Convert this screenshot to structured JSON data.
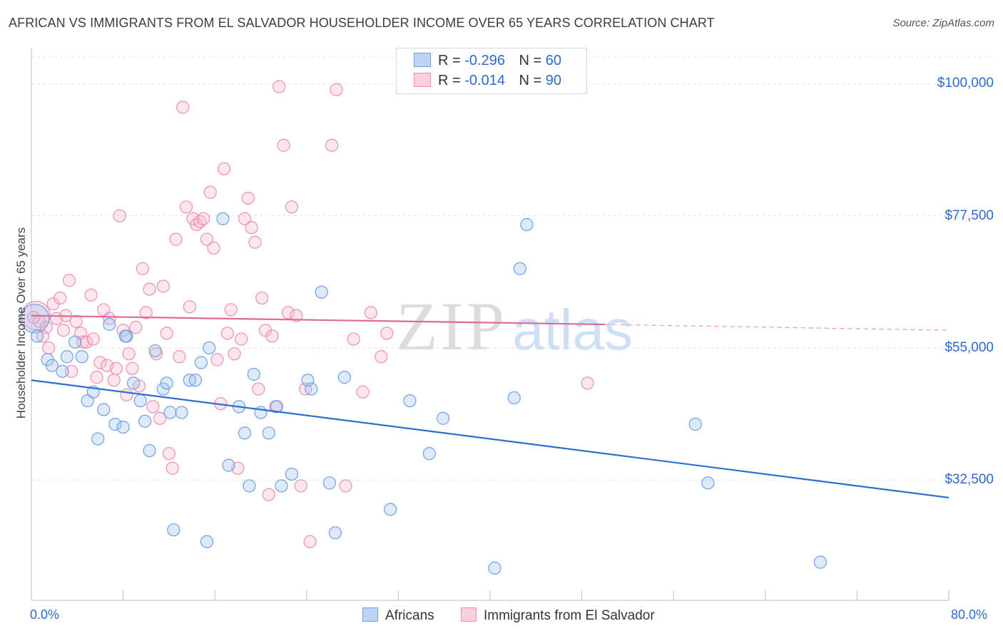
{
  "title": "AFRICAN VS IMMIGRANTS FROM EL SALVADOR HOUSEHOLDER INCOME OVER 65 YEARS CORRELATION CHART",
  "source": "Source: ZipAtlas.com",
  "watermark": {
    "zip": "ZIP",
    "atlas": "atlas"
  },
  "legend": {
    "rows": [
      {
        "r_label": "R =",
        "r_value": "-0.296",
        "n_label": "N =",
        "n_value": "60",
        "color": "#a9c8f2"
      },
      {
        "r_label": "R =",
        "r_value": "-0.014",
        "n_label": "N =",
        "n_value": "90",
        "color": "#f5b9cb"
      }
    ]
  },
  "bottom_legend": {
    "africans": "Africans",
    "salvador": "Immigrants from El Salvador"
  },
  "colors": {
    "blue": "#6fa0e8",
    "blue_fill": "rgba(160,195,240,0.35)",
    "blue_line": "#2d6fd0",
    "pink": "#ef8fad",
    "pink_fill": "rgba(245,185,205,0.35)",
    "pink_line": "#e06a93",
    "tick_text": "#2d6ad0"
  },
  "chart_data": {
    "type": "scatter",
    "ylabel": "Householder Income Over 65 years",
    "xlim": [
      0,
      80
    ],
    "ylim": [
      12000,
      106000
    ],
    "x_ticks": [
      {
        "value": 0,
        "label": "0.0%"
      },
      {
        "value": 80,
        "label": "80.0%"
      }
    ],
    "y_ticks": [
      {
        "value": 32500,
        "label": "$32,500"
      },
      {
        "value": 55000,
        "label": "$55,000"
      },
      {
        "value": 77500,
        "label": "$77,500"
      },
      {
        "value": 100000,
        "label": "$100,000"
      }
    ],
    "grid": "horizontal dashed",
    "series": [
      {
        "name": "Africans",
        "trend": {
          "x": [
            0,
            80
          ],
          "y": [
            49500,
            29500
          ]
        },
        "points": [
          [
            0.3,
            60000
          ],
          [
            0.5,
            57000
          ],
          [
            1.4,
            53000
          ],
          [
            1.8,
            52000
          ],
          [
            2.7,
            51000
          ],
          [
            3.1,
            53500
          ],
          [
            3.8,
            56000
          ],
          [
            4.4,
            53500
          ],
          [
            4.9,
            46000
          ],
          [
            5.4,
            47500
          ],
          [
            6.3,
            44500
          ],
          [
            5.8,
            39500
          ],
          [
            6.8,
            59000
          ],
          [
            7.3,
            42000
          ],
          [
            8.0,
            41500
          ],
          [
            8.3,
            57000
          ],
          [
            8.9,
            49000
          ],
          [
            9.5,
            46000
          ],
          [
            9.9,
            42500
          ],
          [
            10.3,
            37500
          ],
          [
            10.8,
            54500
          ],
          [
            11.5,
            48000
          ],
          [
            11.8,
            49000
          ],
          [
            12.4,
            24000
          ],
          [
            12.1,
            44000
          ],
          [
            13.1,
            44000
          ],
          [
            13.8,
            49500
          ],
          [
            14.3,
            49500
          ],
          [
            14.8,
            52500
          ],
          [
            15.3,
            22000
          ],
          [
            15.5,
            55000
          ],
          [
            16.7,
            77000
          ],
          [
            17.2,
            35000
          ],
          [
            18.1,
            45000
          ],
          [
            18.6,
            40500
          ],
          [
            19.0,
            31500
          ],
          [
            19.4,
            50500
          ],
          [
            20.0,
            44000
          ],
          [
            20.7,
            40500
          ],
          [
            21.4,
            45000
          ],
          [
            21.8,
            31500
          ],
          [
            22.7,
            33500
          ],
          [
            24.1,
            49500
          ],
          [
            24.4,
            48000
          ],
          [
            25.3,
            64500
          ],
          [
            26.0,
            32000
          ],
          [
            26.5,
            23500
          ],
          [
            27.3,
            50000
          ],
          [
            31.3,
            27500
          ],
          [
            33.0,
            46000
          ],
          [
            34.7,
            37000
          ],
          [
            35.9,
            43000
          ],
          [
            40.4,
            17500
          ],
          [
            42.1,
            46500
          ],
          [
            42.6,
            68500
          ],
          [
            43.2,
            76000
          ],
          [
            57.9,
            42000
          ],
          [
            59.0,
            32000
          ],
          [
            68.8,
            18500
          ],
          [
            8.2,
            57000
          ]
        ]
      },
      {
        "name": "Immigrants from El Salvador",
        "trend": {
          "x": [
            0,
            50
          ],
          "y": [
            60500,
            59000
          ]
        },
        "trend_dashed": {
          "x": [
            50,
            80
          ],
          "y": [
            59000,
            58000
          ]
        },
        "points": [
          [
            0.4,
            60500
          ],
          [
            0.7,
            59500
          ],
          [
            1.0,
            57000
          ],
          [
            1.3,
            58500
          ],
          [
            1.5,
            55000
          ],
          [
            1.9,
            62500
          ],
          [
            2.2,
            60000
          ],
          [
            2.5,
            63500
          ],
          [
            2.8,
            58000
          ],
          [
            3.0,
            60500
          ],
          [
            3.3,
            66500
          ],
          [
            3.5,
            51000
          ],
          [
            3.9,
            59500
          ],
          [
            4.3,
            57500
          ],
          [
            4.5,
            56000
          ],
          [
            4.8,
            56000
          ],
          [
            5.2,
            64000
          ],
          [
            5.4,
            56500
          ],
          [
            5.7,
            50000
          ],
          [
            6.0,
            52500
          ],
          [
            6.3,
            61500
          ],
          [
            6.6,
            52000
          ],
          [
            6.8,
            60000
          ],
          [
            7.2,
            49500
          ],
          [
            7.4,
            51500
          ],
          [
            7.7,
            77500
          ],
          [
            8.0,
            58000
          ],
          [
            8.3,
            47000
          ],
          [
            8.5,
            54000
          ],
          [
            8.8,
            51500
          ],
          [
            9.1,
            58500
          ],
          [
            9.4,
            48500
          ],
          [
            9.7,
            68500
          ],
          [
            10.0,
            61000
          ],
          [
            10.3,
            65000
          ],
          [
            10.6,
            45000
          ],
          [
            10.9,
            54000
          ],
          [
            11.2,
            43000
          ],
          [
            11.5,
            65500
          ],
          [
            11.8,
            57500
          ],
          [
            12.0,
            37000
          ],
          [
            12.3,
            34500
          ],
          [
            12.6,
            73500
          ],
          [
            12.9,
            53500
          ],
          [
            13.2,
            96000
          ],
          [
            13.5,
            79000
          ],
          [
            13.8,
            62000
          ],
          [
            14.1,
            77000
          ],
          [
            14.4,
            76000
          ],
          [
            14.7,
            76500
          ],
          [
            15.0,
            77000
          ],
          [
            15.3,
            73500
          ],
          [
            15.6,
            81500
          ],
          [
            15.9,
            72000
          ],
          [
            16.2,
            53000
          ],
          [
            16.5,
            45500
          ],
          [
            16.8,
            85500
          ],
          [
            17.1,
            57500
          ],
          [
            17.4,
            61500
          ],
          [
            17.7,
            54000
          ],
          [
            18.0,
            34500
          ],
          [
            18.3,
            56500
          ],
          [
            18.6,
            77000
          ],
          [
            18.9,
            80500
          ],
          [
            19.2,
            75500
          ],
          [
            19.5,
            73000
          ],
          [
            19.8,
            48000
          ],
          [
            20.1,
            63500
          ],
          [
            20.4,
            58000
          ],
          [
            20.7,
            30000
          ],
          [
            21.0,
            57000
          ],
          [
            21.3,
            45000
          ],
          [
            21.6,
            99500
          ],
          [
            22.0,
            89500
          ],
          [
            22.4,
            61000
          ],
          [
            22.7,
            79000
          ],
          [
            23.1,
            60500
          ],
          [
            23.5,
            31500
          ],
          [
            23.9,
            48000
          ],
          [
            24.3,
            22000
          ],
          [
            26.2,
            89500
          ],
          [
            26.6,
            99000
          ],
          [
            27.4,
            31500
          ],
          [
            28.1,
            56500
          ],
          [
            28.9,
            47500
          ],
          [
            29.6,
            61000
          ],
          [
            30.5,
            53500
          ],
          [
            31.0,
            57500
          ],
          [
            48.5,
            49000
          ],
          [
            0.2,
            60200
          ]
        ]
      }
    ]
  }
}
